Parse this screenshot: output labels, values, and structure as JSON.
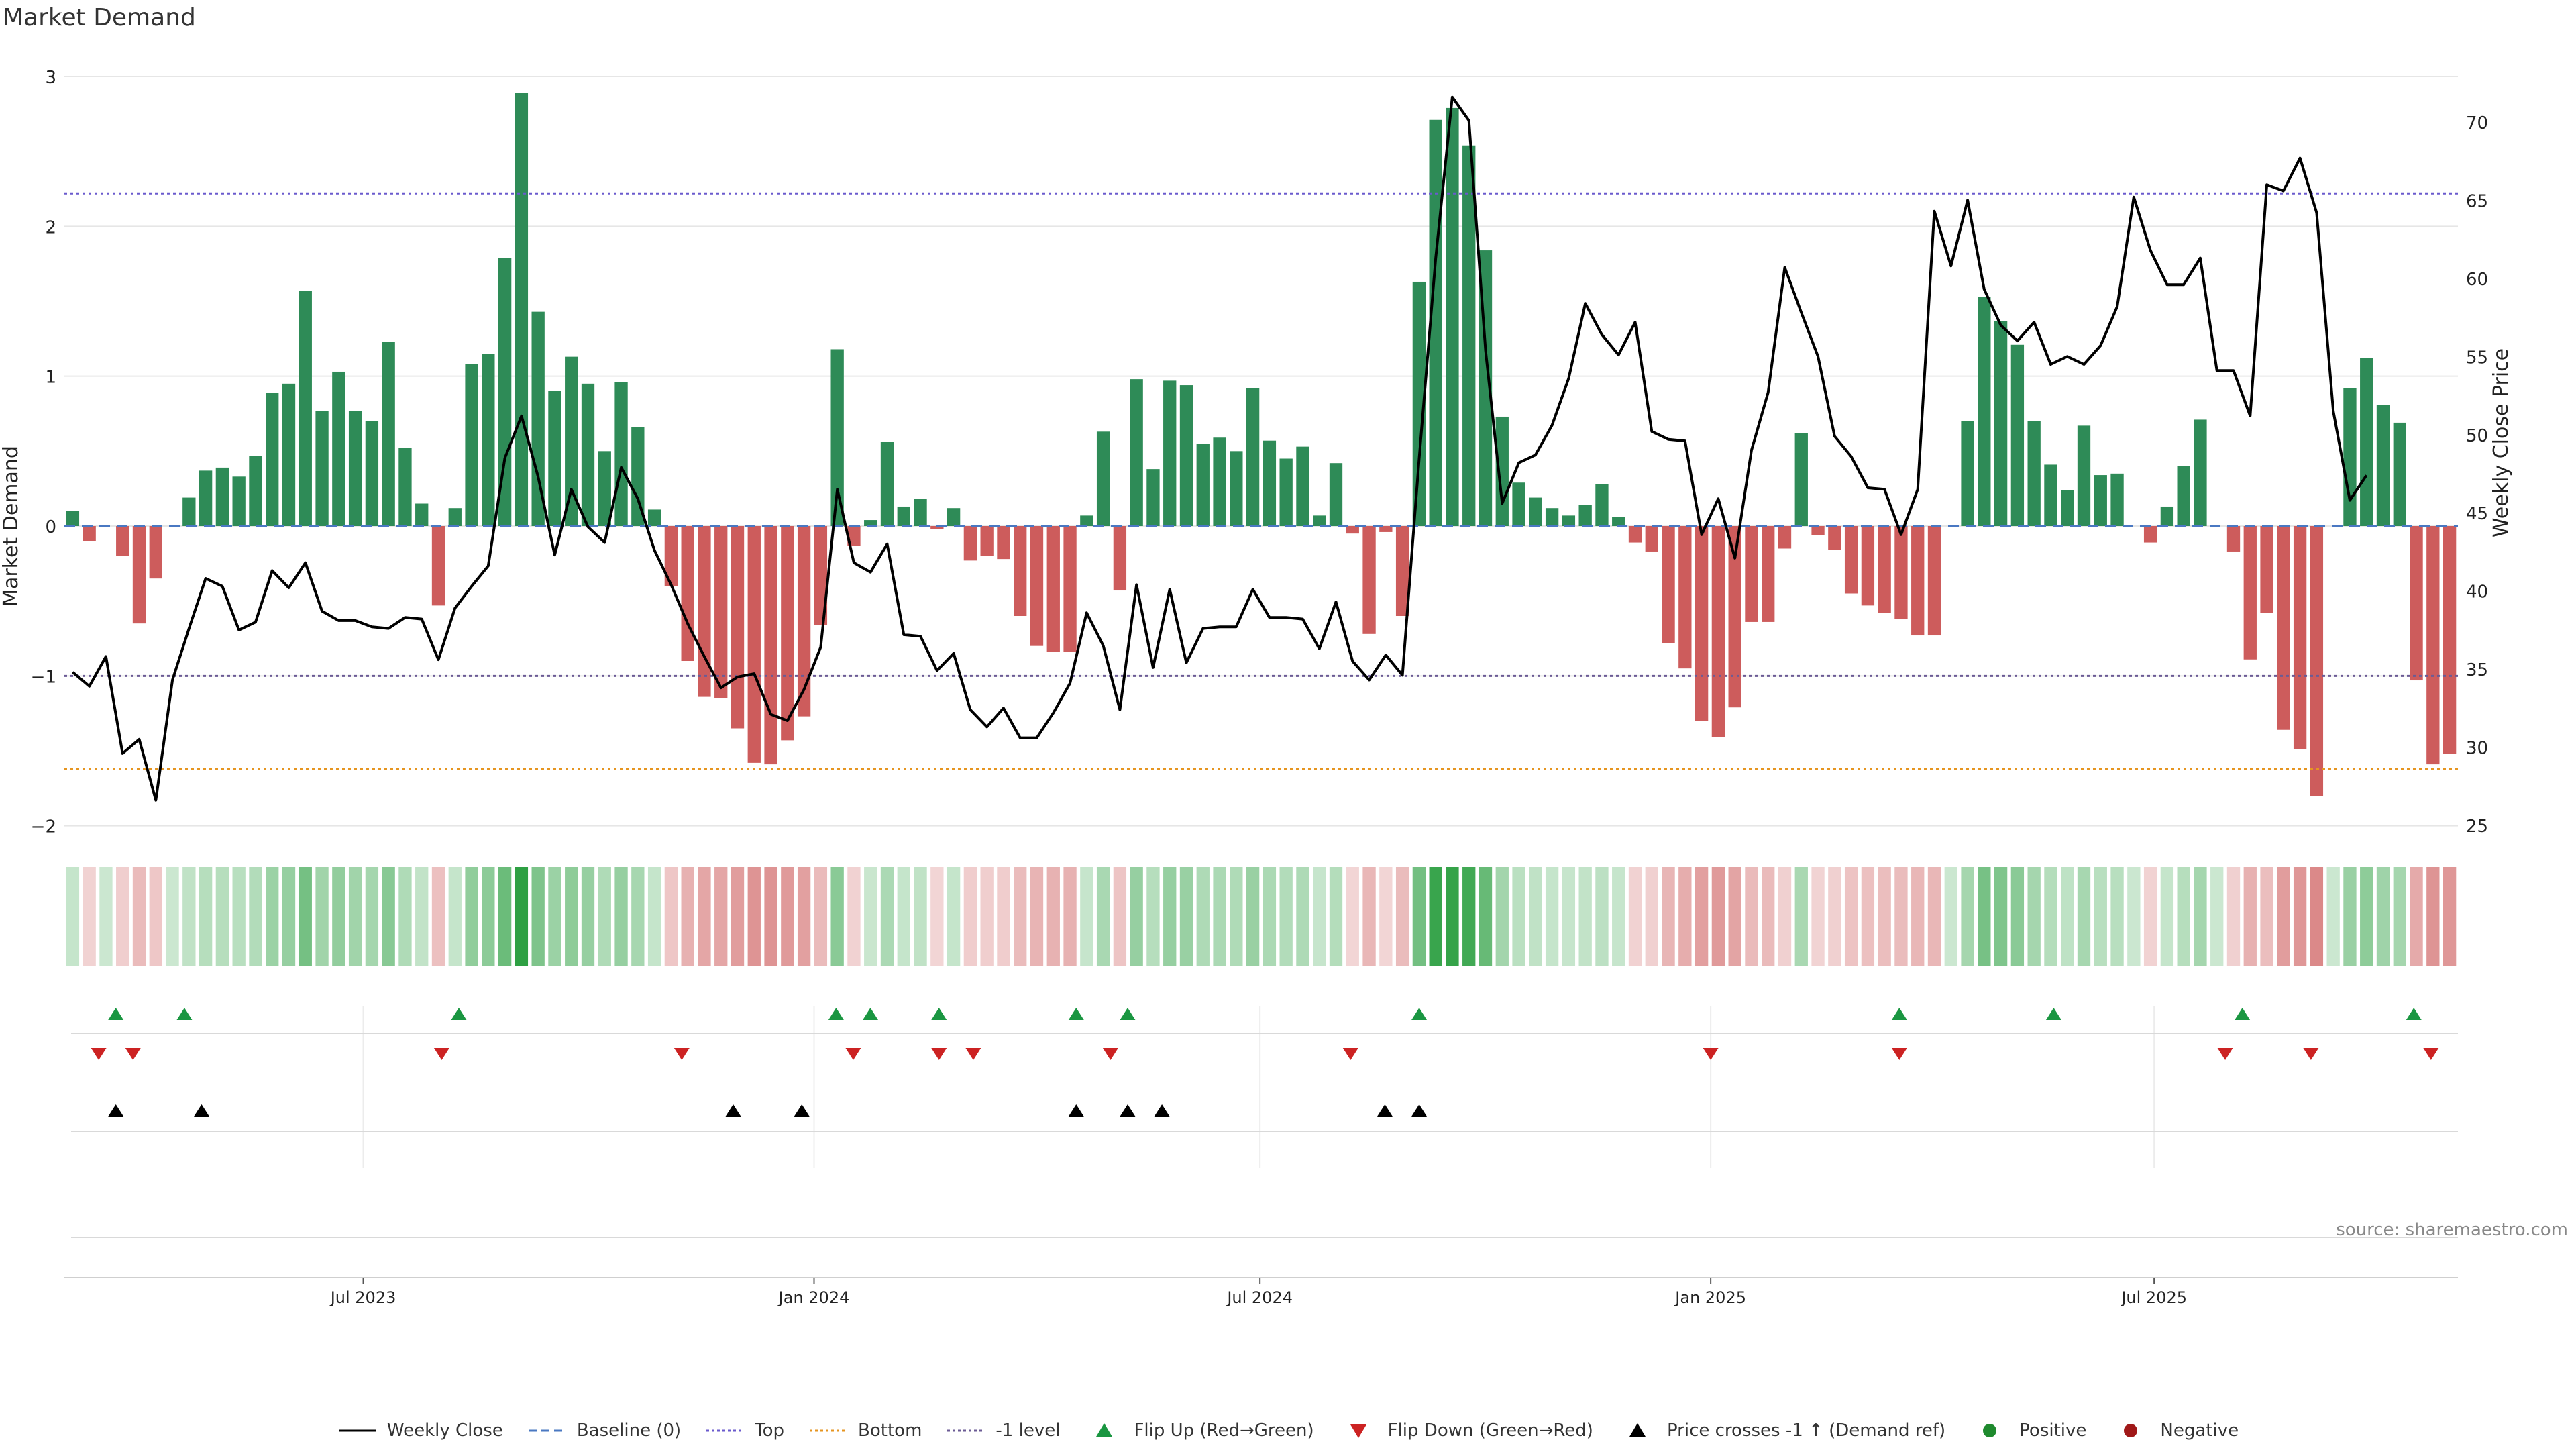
{
  "title": "Market Demand",
  "source": "source: sharemaestro.com",
  "colors": {
    "positive": "#2e8b57",
    "negative": "#cd5c5c",
    "price": "#000000",
    "baseline": "#4a78c2",
    "top": "#6a5acd",
    "bottom": "#e69520",
    "minus1": "#6b5b95",
    "flip_up": "#1a9641",
    "flip_down": "#cc2222",
    "cross": "#000000"
  },
  "chart_data": {
    "type": "bar",
    "title": "Market Demand",
    "ylabel": "Market Demand",
    "y2label": "Weekly Close Price",
    "ylim": [
      -2.2,
      3.05
    ],
    "y2lim": [
      22.8,
      74.8
    ],
    "yticks": [
      3,
      2,
      1,
      0,
      -1,
      -2
    ],
    "ytick_labels": [
      "3",
      "2",
      "1",
      "0",
      "−1",
      "−2"
    ],
    "y2ticks": [
      70,
      65,
      60,
      55,
      50,
      45,
      40,
      35,
      30,
      25
    ],
    "x_start": "2023-03-01",
    "x_end": "2025-11-02",
    "xticks": [
      {
        "date": "2023-07-01",
        "label": "Jul 2023"
      },
      {
        "date": "2024-01-01",
        "label": "Jan 2024"
      },
      {
        "date": "2024-07-01",
        "label": "Jul 2024"
      },
      {
        "date": "2025-01-01",
        "label": "Jan 2025"
      },
      {
        "date": "2025-07-01",
        "label": "Jul 2025"
      }
    ],
    "reference_lines": {
      "baseline": 0,
      "top": 2.22,
      "bottom": -1.62,
      "minus1": -1.0
    },
    "demand": [
      0.1,
      -0.1,
      0.0,
      -0.2,
      -0.65,
      -0.35,
      0.0,
      0.19,
      0.37,
      0.39,
      0.33,
      0.47,
      0.89,
      0.95,
      1.57,
      0.77,
      1.03,
      0.77,
      0.7,
      1.23,
      0.52,
      0.15,
      -0.53,
      0.12,
      1.08,
      1.15,
      1.79,
      2.89,
      1.43,
      0.9,
      1.13,
      0.95,
      0.5,
      0.96,
      0.66,
      0.11,
      -0.4,
      -0.9,
      -1.14,
      -1.15,
      -1.35,
      -1.58,
      -1.59,
      -1.43,
      -1.27,
      -0.66,
      1.18,
      -0.13,
      0.04,
      0.56,
      0.13,
      0.18,
      -0.02,
      0.12,
      -0.23,
      -0.2,
      -0.22,
      -0.6,
      -0.8,
      -0.84,
      -0.84,
      0.07,
      0.63,
      -0.43,
      0.98,
      0.38,
      0.97,
      0.94,
      0.55,
      0.59,
      0.5,
      0.92,
      0.57,
      0.45,
      0.53,
      0.07,
      0.42,
      -0.05,
      -0.72,
      -0.04,
      -0.6,
      1.63,
      2.71,
      2.79,
      2.54,
      1.84,
      0.73,
      0.29,
      0.19,
      0.12,
      0.07,
      0.14,
      0.28,
      0.06,
      -0.11,
      -0.17,
      -0.78,
      -0.95,
      -1.3,
      -1.41,
      -1.21,
      -0.64,
      -0.64,
      -0.15,
      0.62,
      -0.06,
      -0.16,
      -0.45,
      -0.53,
      -0.58,
      -0.62,
      -0.73,
      -0.73,
      0.0,
      0.7,
      1.53,
      1.37,
      1.21,
      0.7,
      0.41,
      0.24,
      0.67,
      0.34,
      0.35,
      0.0,
      -0.11,
      0.13,
      0.4,
      0.71,
      0.0,
      -0.17,
      -0.89,
      -0.58,
      -1.36,
      -1.49,
      -1.8,
      0.0,
      0.92,
      1.12,
      0.81,
      0.69,
      -1.03,
      -1.59,
      -1.52
    ],
    "weekly_close": [
      34.8,
      33.9,
      35.8,
      29.6,
      30.5,
      26.6,
      34.3,
      37.6,
      40.8,
      40.3,
      37.5,
      38.0,
      41.3,
      40.2,
      41.8,
      38.7,
      38.1,
      38.1,
      37.7,
      37.6,
      38.3,
      38.2,
      35.6,
      38.9,
      40.3,
      41.6,
      48.5,
      51.2,
      47.3,
      42.3,
      46.5,
      44.1,
      43.1,
      47.9,
      45.9,
      42.6,
      40.4,
      37.9,
      35.8,
      33.8,
      34.5,
      34.7,
      32.1,
      31.7,
      33.7,
      36.4,
      46.5,
      41.8,
      41.2,
      43.0,
      37.2,
      37.1,
      34.9,
      36.0,
      32.4,
      31.3,
      32.5,
      30.6,
      30.6,
      32.2,
      34.1,
      38.6,
      36.5,
      32.4,
      40.4,
      35.1,
      40.1,
      35.4,
      37.6,
      37.7,
      37.7,
      40.1,
      38.3,
      38.3,
      38.2,
      36.3,
      39.3,
      35.5,
      34.3,
      35.9,
      34.6,
      48.4,
      61.3,
      71.6,
      70.1,
      55.4,
      45.6,
      48.2,
      48.7,
      50.6,
      53.6,
      58.4,
      56.4,
      55.1,
      57.2,
      50.2,
      49.7,
      49.6,
      43.6,
      45.9,
      42.1,
      49.0,
      52.7,
      60.7,
      57.8,
      55.0,
      49.9,
      48.6,
      46.6,
      46.5,
      43.6,
      46.5,
      64.3,
      60.8,
      65.0,
      59.3,
      57.0,
      56.0,
      57.2,
      54.5,
      55.0,
      54.5,
      55.7,
      58.2,
      65.2,
      61.8,
      59.6,
      59.6,
      61.3,
      54.1,
      54.1,
      51.2,
      66.0,
      65.6,
      67.7,
      64.2,
      51.5,
      45.8,
      47.4
    ]
  },
  "panels": {
    "flip_up_dates": [
      "2023-03-22",
      "2023-04-19",
      "2023-08-09",
      "2024-01-10",
      "2024-01-24",
      "2024-02-21",
      "2024-04-17",
      "2024-05-08",
      "2024-09-04",
      "2025-03-19",
      "2025-05-21",
      "2025-08-06",
      "2025-10-15"
    ],
    "flip_down_dates": [
      "2023-03-15",
      "2023-03-29",
      "2023-08-02",
      "2023-11-08",
      "2024-01-17",
      "2024-02-21",
      "2024-03-06",
      "2024-05-01",
      "2024-08-07",
      "2025-01-01",
      "2025-03-19",
      "2025-07-30",
      "2025-09-03",
      "2025-10-22"
    ],
    "cross_dates": [
      "2023-03-22",
      "2023-04-26",
      "2023-11-29",
      "2023-12-27",
      "2024-04-17",
      "2024-05-08",
      "2024-05-22",
      "2024-08-21",
      "2024-09-04"
    ]
  },
  "legend": [
    {
      "key": "weekly_close",
      "label": "Weekly Close",
      "icon": "solid-line-icon",
      "color": "#000000"
    },
    {
      "key": "baseline",
      "label": "Baseline (0)",
      "icon": "dashed-line-icon",
      "color": "#4a78c2"
    },
    {
      "key": "top",
      "label": "Top",
      "icon": "dotted-line-icon",
      "color": "#6a5acd"
    },
    {
      "key": "bottom",
      "label": "Bottom",
      "icon": "dotted-line-icon",
      "color": "#e69520"
    },
    {
      "key": "minus1",
      "label": "-1 level",
      "icon": "dotted-line-icon",
      "color": "#6b5b95"
    },
    {
      "key": "flip_up",
      "label": "Flip Up (Red→Green)",
      "icon": "triangle-up-icon",
      "color": "#1a9641"
    },
    {
      "key": "flip_down",
      "label": "Flip Down (Green→Red)",
      "icon": "triangle-down-icon",
      "color": "#cc2222"
    },
    {
      "key": "cross",
      "label": "Price crosses -1 ↑ (Demand ref)",
      "icon": "triangle-up-icon",
      "color": "#000000"
    },
    {
      "key": "positive",
      "label": "Positive",
      "icon": "circle-icon",
      "color": "#1f8a2e"
    },
    {
      "key": "negative",
      "label": "Negative",
      "icon": "circle-icon",
      "color": "#a01818"
    }
  ]
}
